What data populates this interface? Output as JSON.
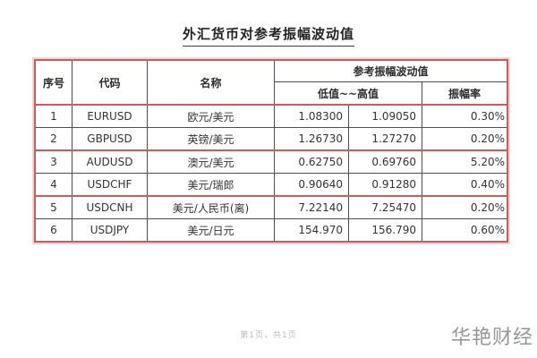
{
  "page": {
    "title": "外汇货币对参考振幅波动值",
    "footer": "第1页，共1页",
    "watermark": "华艳财经"
  },
  "colors": {
    "table_border_red": "#cf5a5a",
    "row_separator_dark": "#4d4d4d",
    "footer_gray": "#b9b9b9",
    "watermark_gray": "#94979a"
  },
  "table": {
    "headers": {
      "index": "序号",
      "code": "代码",
      "name": "名称",
      "group": "参考振幅波动值",
      "range": "低值~~高值",
      "rate": "振幅率"
    },
    "rows": [
      {
        "index": "1",
        "code": "EURUSD",
        "name": "欧元/美元",
        "low": "1.08300",
        "high": "1.09050",
        "rate": "0.30%"
      },
      {
        "index": "2",
        "code": "GBPUSD",
        "name": "英镑/美元",
        "low": "1.26730",
        "high": "1.27270",
        "rate": "0.20%"
      },
      {
        "index": "3",
        "code": "AUDUSD",
        "name": "澳元/美元",
        "low": "0.62750",
        "high": "0.69760",
        "rate": "5.20%"
      },
      {
        "index": "4",
        "code": "USDCHF",
        "name": "美元/瑞郎",
        "low": "0.90640",
        "high": "0.91280",
        "rate": "0.40%"
      },
      {
        "index": "5",
        "code": "USDCNH",
        "name": "美元/人民币(离)",
        "low": "7.22140",
        "high": "7.25470",
        "rate": "0.20%"
      },
      {
        "index": "6",
        "code": "USDJPY",
        "name": "美元/日元",
        "low": "154.970",
        "high": "156.790",
        "rate": "0.60%"
      }
    ]
  }
}
